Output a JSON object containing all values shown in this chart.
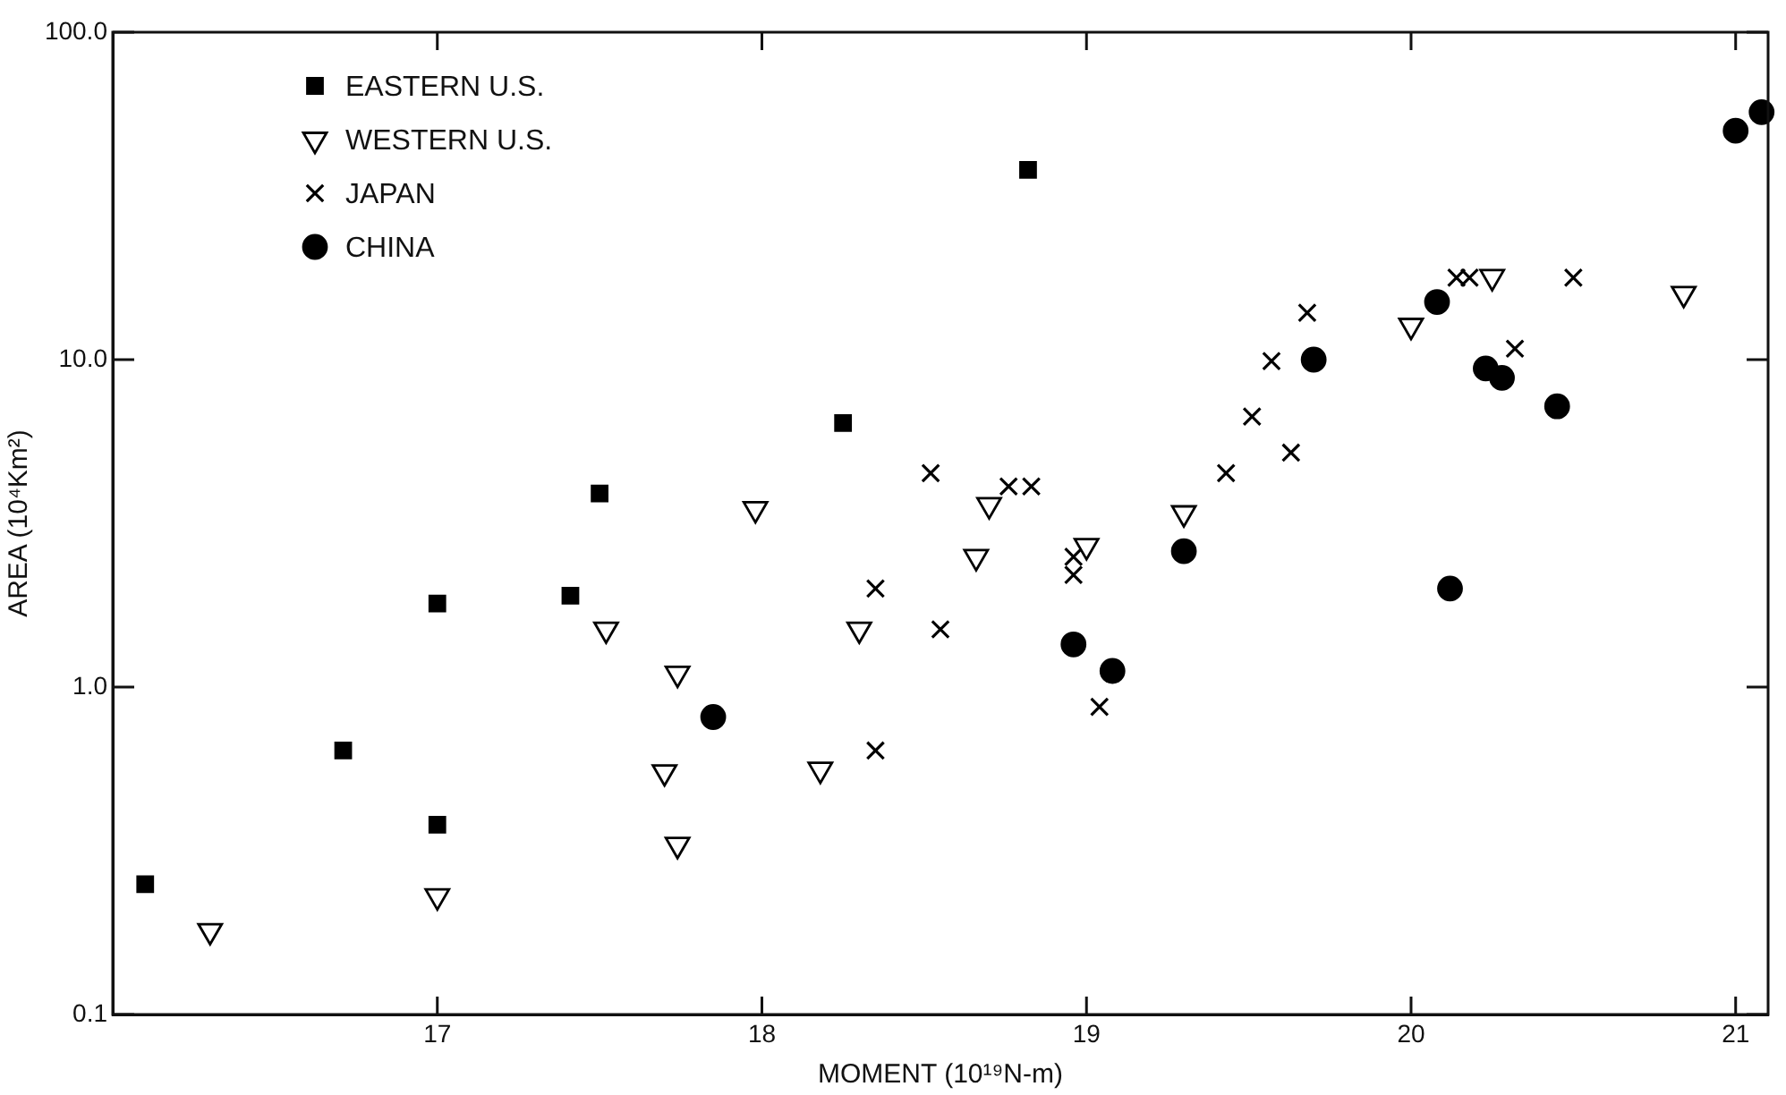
{
  "chart_data": {
    "type": "scatter",
    "xlabel": "MOMENT (10¹⁹N-m)",
    "ylabel": "AREA (10⁴Km²)",
    "xlim": [
      16,
      21.1
    ],
    "xticks": [
      17,
      18,
      19,
      20,
      21
    ],
    "ylim": [
      0.1,
      100
    ],
    "yticks": [
      {
        "value": 0.1,
        "label": "0.1"
      },
      {
        "value": 1,
        "label": "1.0"
      },
      {
        "value": 10,
        "label": "10.0"
      },
      {
        "value": 100,
        "label": "100.0"
      }
    ],
    "log": "y",
    "grid": false,
    "legend": "top left",
    "series": [
      {
        "name": "EASTERN U.S.",
        "color": "#000000",
        "marker": "square",
        "x": [
          16.1,
          16.71,
          17.0,
          17.0,
          17.41,
          17.5,
          18.25,
          18.82
        ],
        "values": [
          0.25,
          0.64,
          0.38,
          1.8,
          1.9,
          3.9,
          6.4,
          38
        ]
      },
      {
        "name": "WESTERN U.S.",
        "color": "#000000",
        "marker": "triangle",
        "x": [
          16.3,
          17.0,
          17.52,
          17.74,
          17.7,
          17.74,
          17.98,
          18.18,
          18.3,
          18.66,
          18.7,
          19.0,
          19.3,
          20.0,
          20.25,
          20.84
        ],
        "values": [
          0.18,
          0.23,
          1.5,
          1.1,
          0.55,
          0.33,
          3.5,
          0.56,
          1.5,
          2.5,
          3.6,
          2.7,
          3.4,
          12.7,
          17.9,
          15.9
        ]
      },
      {
        "name": "JAPAN",
        "color": "#000000",
        "marker": "cross",
        "x": [
          18.35,
          18.35,
          18.52,
          18.55,
          18.76,
          18.83,
          18.96,
          18.96,
          19.04,
          19.43,
          19.51,
          19.57,
          19.63,
          19.68,
          20.14,
          20.18,
          20.32,
          20.5
        ],
        "values": [
          2.0,
          0.64,
          4.5,
          1.5,
          4.1,
          4.1,
          2.5,
          2.2,
          0.87,
          4.5,
          6.7,
          9.9,
          5.2,
          13.9,
          17.8,
          17.8,
          10.8,
          17.8
        ]
      },
      {
        "name": "CHINA",
        "color": "#000000",
        "marker": "circle",
        "x": [
          17.85,
          18.96,
          19.08,
          19.3,
          19.7,
          20.08,
          20.23,
          20.28,
          20.45,
          20.12,
          21.0,
          21.08
        ],
        "values": [
          0.81,
          1.35,
          1.12,
          2.6,
          10.0,
          15,
          9.4,
          8.8,
          7.2,
          2.0,
          50,
          57
        ]
      }
    ]
  }
}
